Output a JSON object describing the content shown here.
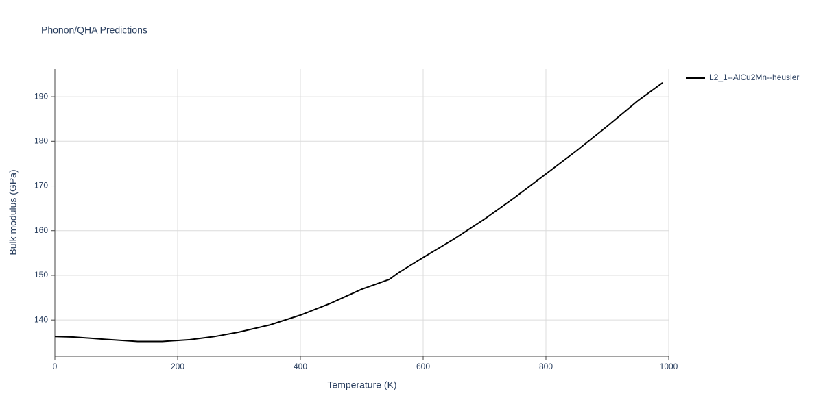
{
  "chart_data": {
    "type": "line",
    "title": "Phonon/QHA Predictions",
    "x_label": "Temperature (K)",
    "y_label": "Bulk modulus (GPa)",
    "x": [
      0,
      30,
      80,
      135,
      175,
      220,
      260,
      300,
      350,
      400,
      450,
      500,
      545,
      560,
      600,
      650,
      700,
      750,
      800,
      850,
      900,
      950,
      990
    ],
    "series": [
      {
        "name": "L2_1--AlCu2Mn--heusler",
        "color": "#000000",
        "values": [
          136.3,
          136.2,
          135.7,
          135.2,
          135.2,
          135.6,
          136.3,
          137.3,
          138.9,
          141.1,
          143.8,
          146.9,
          149.1,
          150.6,
          154.0,
          158.1,
          162.6,
          167.5,
          172.7,
          177.9,
          183.4,
          189.1,
          193.1
        ]
      }
    ],
    "xlim": [
      0,
      1000
    ],
    "xticks": [
      0,
      200,
      400,
      600,
      800,
      1000
    ],
    "ylim": [
      131.9,
      196.3
    ],
    "yticks": [
      140,
      150,
      160,
      170,
      180,
      190
    ],
    "grid": true,
    "legend": "right"
  }
}
